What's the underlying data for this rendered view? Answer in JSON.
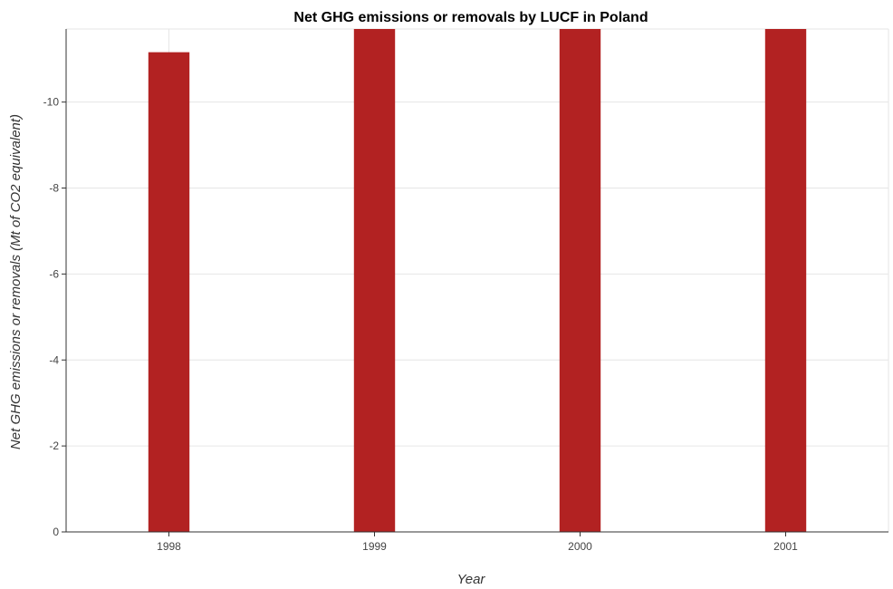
{
  "chart_data": {
    "type": "bar",
    "title": "Net GHG emissions or removals by LUCF in Poland",
    "xlabel": "Year",
    "ylabel": "Net GHG emissions or removals (Mt of CO2 equivalent)",
    "categories": [
      "1998",
      "1999",
      "2000",
      "2001"
    ],
    "values": [
      -11.16,
      -11.7,
      -11.7,
      -11.7
    ],
    "y_ticks": [
      0,
      -2,
      -4,
      -6,
      -8,
      -10
    ],
    "y_tick_labels": [
      "0",
      "-2",
      "-4",
      "-6",
      "-8",
      "-10"
    ],
    "ylim": [
      0,
      -11.7
    ],
    "y_inverted": true,
    "grid": true,
    "bar_color": "#b22222"
  }
}
